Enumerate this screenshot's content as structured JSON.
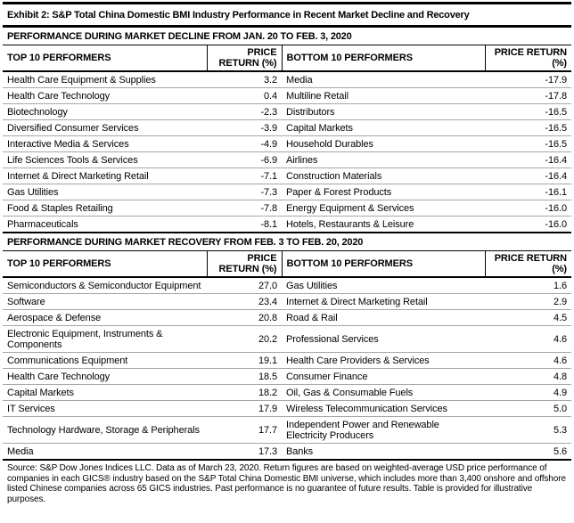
{
  "exhibit": {
    "title": "Exhibit 2: S&P Total China Domestic BMI Industry Performance in Recent Market Decline and Recovery"
  },
  "tables": [
    {
      "section_title": "PERFORMANCE DURING MARKET DECLINE FROM JAN. 20 TO FEB. 3, 2020",
      "columns": [
        "TOP 10 PERFORMERS",
        "PRICE RETURN (%)",
        "BOTTOM 10 PERFORMERS",
        "PRICE RETURN (%)"
      ],
      "rows": [
        {
          "top_name": "Health Care Equipment & Supplies",
          "top_return": "3.2",
          "bottom_name": "Media",
          "bottom_return": "-17.9"
        },
        {
          "top_name": "Health Care Technology",
          "top_return": "0.4",
          "bottom_name": "Multiline Retail",
          "bottom_return": "-17.8"
        },
        {
          "top_name": "Biotechnology",
          "top_return": "-2.3",
          "bottom_name": "Distributors",
          "bottom_return": "-16.5"
        },
        {
          "top_name": "Diversified Consumer Services",
          "top_return": "-3.9",
          "bottom_name": "Capital Markets",
          "bottom_return": "-16.5"
        },
        {
          "top_name": "Interactive Media & Services",
          "top_return": "-4.9",
          "bottom_name": "Household Durables",
          "bottom_return": "-16.5"
        },
        {
          "top_name": "Life Sciences Tools & Services",
          "top_return": "-6.9",
          "bottom_name": "Airlines",
          "bottom_return": "-16.4"
        },
        {
          "top_name": "Internet & Direct Marketing Retail",
          "top_return": "-7.1",
          "bottom_name": "Construction Materials",
          "bottom_return": "-16.4"
        },
        {
          "top_name": "Gas Utilities",
          "top_return": "-7.3",
          "bottom_name": "Paper & Forest Products",
          "bottom_return": "-16.1"
        },
        {
          "top_name": "Food & Staples Retailing",
          "top_return": "-7.8",
          "bottom_name": "Energy Equipment & Services",
          "bottom_return": "-16.0"
        },
        {
          "top_name": "Pharmaceuticals",
          "top_return": "-8.1",
          "bottom_name": "Hotels, Restaurants & Leisure",
          "bottom_return": "-16.0"
        }
      ]
    },
    {
      "section_title": "PERFORMANCE DURING MARKET RECOVERY FROM FEB. 3 TO FEB. 20, 2020",
      "columns": [
        "TOP 10 PERFORMERS",
        "PRICE RETURN (%)",
        "BOTTOM 10 PERFORMERS",
        "PRICE RETURN (%)"
      ],
      "rows": [
        {
          "top_name": "Semiconductors & Semiconductor Equipment",
          "top_return": "27.0",
          "bottom_name": "Gas Utilities",
          "bottom_return": "1.6"
        },
        {
          "top_name": "Software",
          "top_return": "23.4",
          "bottom_name": "Internet & Direct Marketing Retail",
          "bottom_return": "2.9"
        },
        {
          "top_name": "Aerospace & Defense",
          "top_return": "20.8",
          "bottom_name": "Road & Rail",
          "bottom_return": "4.5"
        },
        {
          "top_name": "Electronic Equipment, Instruments & Components",
          "top_return": "20.2",
          "bottom_name": "Professional Services",
          "bottom_return": "4.6"
        },
        {
          "top_name": "Communications Equipment",
          "top_return": "19.1",
          "bottom_name": "Health Care Providers & Services",
          "bottom_return": "4.6"
        },
        {
          "top_name": "Health Care Technology",
          "top_return": "18.5",
          "bottom_name": "Consumer Finance",
          "bottom_return": "4.8"
        },
        {
          "top_name": "Capital Markets",
          "top_return": "18.2",
          "bottom_name": "Oil, Gas & Consumable Fuels",
          "bottom_return": "4.9"
        },
        {
          "top_name": "IT Services",
          "top_return": "17.9",
          "bottom_name": "Wireless Telecommunication Services",
          "bottom_return": "5.0"
        },
        {
          "top_name": "Technology Hardware, Storage & Peripherals",
          "top_return": "17.7",
          "bottom_name": "Independent Power and Renewable Electricity Producers",
          "bottom_return": "5.3"
        },
        {
          "top_name": "Media",
          "top_return": "17.3",
          "bottom_name": "Banks",
          "bottom_return": "5.6"
        }
      ]
    }
  ],
  "footnote": "Source: S&P Dow Jones Indices LLC. Data as of March 23, 2020. Return figures are based on weighted-average USD price performance of companies in each GICS® industry based on the S&P Total China Domestic BMI universe, which includes more than 3,400 onshore and offshore listed Chinese companies across 65 GICS industries. Past performance is no guarantee of future results. Table is provided for illustrative purposes.",
  "colors": {
    "border_black": "#000000",
    "row_separator": "#a6a6a6",
    "background": "#ffffff",
    "text": "#000000"
  }
}
